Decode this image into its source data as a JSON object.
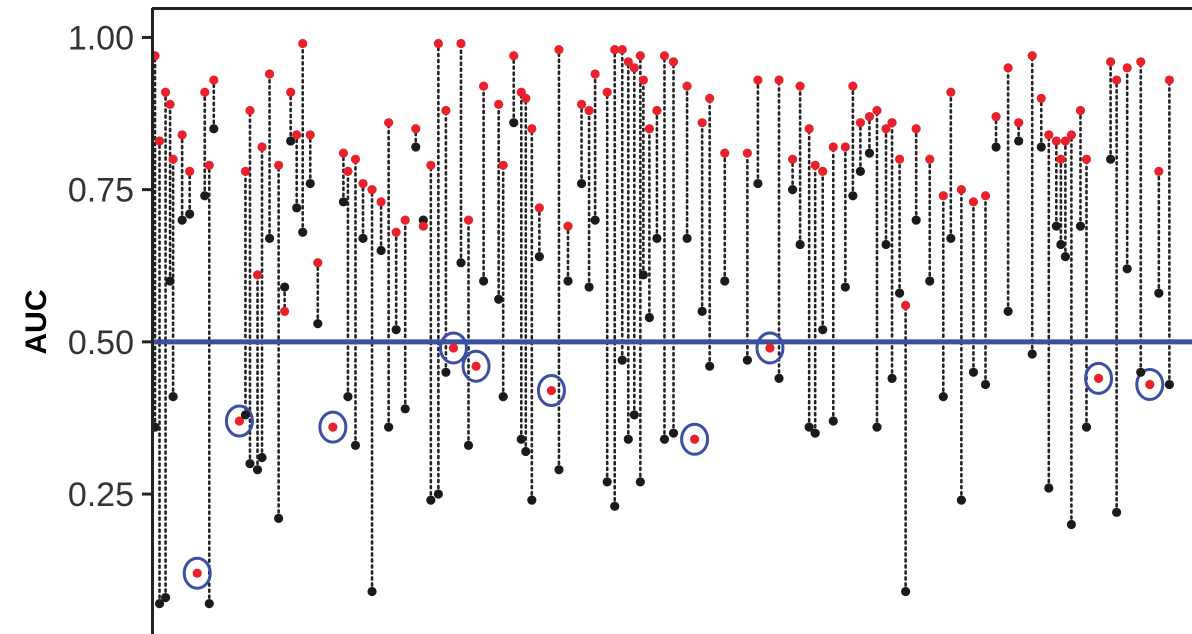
{
  "chart_data": {
    "type": "scatter",
    "title": "",
    "xlabel": "",
    "ylabel": "AUC",
    "ylim": [
      0.03,
      1.05
    ],
    "yticks": [
      0.25,
      0.5,
      0.75,
      1.0
    ],
    "ytick_labels": [
      "0.25",
      "0.50",
      "0.75",
      "1.00"
    ],
    "reference_line": {
      "y": 0.5,
      "color": "#3b4fa3"
    },
    "grid": false,
    "legend": "none",
    "colors": {
      "baseline": "#1a1a1a",
      "new": "#e8212b",
      "highlight": "#3b4fa3",
      "reference": "#3b4fa3"
    },
    "pairs": [
      {
        "x": 2,
        "base": 0.36,
        "new": 0.97
      },
      {
        "x": 5,
        "base": 0.07,
        "new": 0.83
      },
      {
        "x": 9,
        "base": 0.08,
        "new": 0.91
      },
      {
        "x": 12,
        "base": 0.6,
        "new": 0.89
      },
      {
        "x": 14,
        "base": 0.41,
        "new": 0.8
      },
      {
        "x": 20,
        "base": 0.7,
        "new": 0.84
      },
      {
        "x": 25,
        "base": 0.71,
        "new": 0.78
      },
      {
        "x": 30,
        "base": 0.12,
        "new": 0.12,
        "highlight": true
      },
      {
        "x": 35,
        "base": 0.74,
        "new": 0.91
      },
      {
        "x": 38,
        "base": 0.07,
        "new": 0.79
      },
      {
        "x": 41,
        "base": 0.85,
        "new": 0.93
      },
      {
        "x": 58,
        "base": 0.37,
        "new": 0.37,
        "highlight": true
      },
      {
        "x": 62,
        "base": 0.38,
        "new": 0.78
      },
      {
        "x": 65,
        "base": 0.3,
        "new": 0.88
      },
      {
        "x": 70,
        "base": 0.29,
        "new": 0.61
      },
      {
        "x": 73,
        "base": 0.31,
        "new": 0.82
      },
      {
        "x": 78,
        "base": 0.67,
        "new": 0.94
      },
      {
        "x": 84,
        "base": 0.21,
        "new": 0.79
      },
      {
        "x": 88,
        "base": 0.59,
        "new": 0.55
      },
      {
        "x": 92,
        "base": 0.83,
        "new": 0.91
      },
      {
        "x": 96,
        "base": 0.72,
        "new": 0.84
      },
      {
        "x": 100,
        "base": 0.68,
        "new": 0.99
      },
      {
        "x": 105,
        "base": 0.76,
        "new": 0.84
      },
      {
        "x": 110,
        "base": 0.53,
        "new": 0.63
      },
      {
        "x": 120,
        "base": 0.36,
        "new": 0.36,
        "highlight": true
      },
      {
        "x": 127,
        "base": 0.73,
        "new": 0.81
      },
      {
        "x": 130,
        "base": 0.41,
        "new": 0.78
      },
      {
        "x": 135,
        "base": 0.33,
        "new": 0.8
      },
      {
        "x": 140,
        "base": 0.67,
        "new": 0.76
      },
      {
        "x": 146,
        "base": 0.09,
        "new": 0.75
      },
      {
        "x": 152,
        "base": 0.65,
        "new": 0.73
      },
      {
        "x": 157,
        "base": 0.36,
        "new": 0.86
      },
      {
        "x": 162,
        "base": 0.52,
        "new": 0.68
      },
      {
        "x": 168,
        "base": 0.39,
        "new": 0.7
      },
      {
        "x": 175,
        "base": 0.82,
        "new": 0.85
      },
      {
        "x": 180,
        "base": 0.7,
        "new": 0.69
      },
      {
        "x": 185,
        "base": 0.24,
        "new": 0.79
      },
      {
        "x": 190,
        "base": 0.25,
        "new": 0.99
      },
      {
        "x": 195,
        "base": 0.45,
        "new": 0.88
      },
      {
        "x": 200,
        "base": 0.49,
        "new": 0.49,
        "highlight": true
      },
      {
        "x": 205,
        "base": 0.63,
        "new": 0.99
      },
      {
        "x": 210,
        "base": 0.33,
        "new": 0.7
      },
      {
        "x": 215,
        "base": 0.46,
        "new": 0.46,
        "highlight": true
      },
      {
        "x": 220,
        "base": 0.6,
        "new": 0.92
      },
      {
        "x": 230,
        "base": 0.57,
        "new": 0.89
      },
      {
        "x": 233,
        "base": 0.41,
        "new": 0.79
      },
      {
        "x": 240,
        "base": 0.86,
        "new": 0.97
      },
      {
        "x": 245,
        "base": 0.34,
        "new": 0.91
      },
      {
        "x": 248,
        "base": 0.32,
        "new": 0.9
      },
      {
        "x": 252,
        "base": 0.24,
        "new": 0.85
      },
      {
        "x": 257,
        "base": 0.64,
        "new": 0.72
      },
      {
        "x": 265,
        "base": 0.42,
        "new": 0.42,
        "highlight": true
      },
      {
        "x": 270,
        "base": 0.29,
        "new": 0.98
      },
      {
        "x": 276,
        "base": 0.6,
        "new": 0.69
      },
      {
        "x": 285,
        "base": 0.76,
        "new": 0.89
      },
      {
        "x": 290,
        "base": 0.59,
        "new": 0.88
      },
      {
        "x": 294,
        "base": 0.7,
        "new": 0.94
      },
      {
        "x": 302,
        "base": 0.27,
        "new": 0.91
      },
      {
        "x": 307,
        "base": 0.23,
        "new": 0.98
      },
      {
        "x": 312,
        "base": 0.47,
        "new": 0.98
      },
      {
        "x": 316,
        "base": 0.34,
        "new": 0.96
      },
      {
        "x": 320,
        "base": 0.38,
        "new": 0.95
      },
      {
        "x": 324,
        "base": 0.27,
        "new": 0.97
      },
      {
        "x": 326,
        "base": 0.61,
        "new": 0.93
      },
      {
        "x": 330,
        "base": 0.54,
        "new": 0.85
      },
      {
        "x": 335,
        "base": 0.67,
        "new": 0.88
      },
      {
        "x": 340,
        "base": 0.34,
        "new": 0.97
      },
      {
        "x": 346,
        "base": 0.35,
        "new": 0.96
      },
      {
        "x": 355,
        "base": 0.67,
        "new": 0.92
      },
      {
        "x": 360,
        "base": 0.34,
        "new": 0.34,
        "highlight": true
      },
      {
        "x": 365,
        "base": 0.55,
        "new": 0.86
      },
      {
        "x": 370,
        "base": 0.46,
        "new": 0.9
      },
      {
        "x": 380,
        "base": 0.6,
        "new": 0.81
      },
      {
        "x": 395,
        "base": 0.47,
        "new": 0.81
      },
      {
        "x": 402,
        "base": 0.76,
        "new": 0.93
      },
      {
        "x": 410,
        "base": 0.49,
        "new": 0.49,
        "highlight": true
      },
      {
        "x": 416,
        "base": 0.44,
        "new": 0.93
      },
      {
        "x": 425,
        "base": 0.75,
        "new": 0.8
      },
      {
        "x": 430,
        "base": 0.66,
        "new": 0.92
      },
      {
        "x": 436,
        "base": 0.36,
        "new": 0.85
      },
      {
        "x": 440,
        "base": 0.35,
        "new": 0.79
      },
      {
        "x": 445,
        "base": 0.52,
        "new": 0.78
      },
      {
        "x": 452,
        "base": 0.37,
        "new": 0.82
      },
      {
        "x": 460,
        "base": 0.59,
        "new": 0.82
      },
      {
        "x": 465,
        "base": 0.74,
        "new": 0.92
      },
      {
        "x": 470,
        "base": 0.78,
        "new": 0.86
      },
      {
        "x": 476,
        "base": 0.81,
        "new": 0.87
      },
      {
        "x": 481,
        "base": 0.36,
        "new": 0.88
      },
      {
        "x": 487,
        "base": 0.66,
        "new": 0.85
      },
      {
        "x": 491,
        "base": 0.44,
        "new": 0.86
      },
      {
        "x": 496,
        "base": 0.58,
        "new": 0.8
      },
      {
        "x": 500,
        "base": 0.09,
        "new": 0.56
      },
      {
        "x": 507,
        "base": 0.7,
        "new": 0.85
      },
      {
        "x": 516,
        "base": 0.6,
        "new": 0.8
      },
      {
        "x": 525,
        "base": 0.41,
        "new": 0.74
      },
      {
        "x": 530,
        "base": 0.67,
        "new": 0.91
      },
      {
        "x": 537,
        "base": 0.24,
        "new": 0.75
      },
      {
        "x": 545,
        "base": 0.45,
        "new": 0.73
      },
      {
        "x": 553,
        "base": 0.43,
        "new": 0.74
      },
      {
        "x": 560,
        "base": 0.82,
        "new": 0.87
      },
      {
        "x": 568,
        "base": 0.55,
        "new": 0.95
      },
      {
        "x": 575,
        "base": 0.83,
        "new": 0.86
      },
      {
        "x": 584,
        "base": 0.48,
        "new": 0.97
      },
      {
        "x": 590,
        "base": 0.82,
        "new": 0.9
      },
      {
        "x": 595,
        "base": 0.26,
        "new": 0.84
      },
      {
        "x": 600,
        "base": 0.69,
        "new": 0.83
      },
      {
        "x": 603,
        "base": 0.66,
        "new": 0.8
      },
      {
        "x": 606,
        "base": 0.64,
        "new": 0.83
      },
      {
        "x": 610,
        "base": 0.2,
        "new": 0.84
      },
      {
        "x": 616,
        "base": 0.69,
        "new": 0.88
      },
      {
        "x": 620,
        "base": 0.36,
        "new": 0.8
      },
      {
        "x": 628,
        "base": 0.44,
        "new": 0.44,
        "highlight": true
      },
      {
        "x": 636,
        "base": 0.8,
        "new": 0.96
      },
      {
        "x": 640,
        "base": 0.22,
        "new": 0.93
      },
      {
        "x": 647,
        "base": 0.62,
        "new": 0.95
      },
      {
        "x": 656,
        "base": 0.45,
        "new": 0.96
      },
      {
        "x": 662,
        "base": 0.43,
        "new": 0.43,
        "highlight": true
      },
      {
        "x": 668,
        "base": 0.58,
        "new": 0.78
      },
      {
        "x": 675,
        "base": 0.43,
        "new": 0.93
      }
    ]
  }
}
